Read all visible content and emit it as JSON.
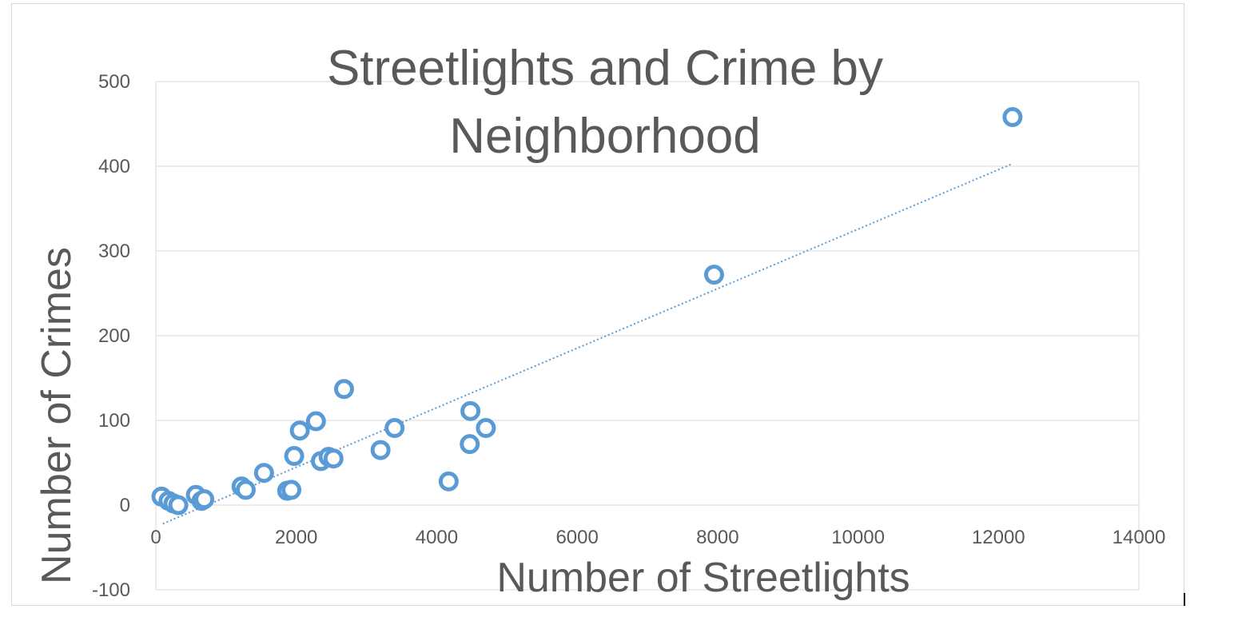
{
  "chart_data": {
    "type": "scatter",
    "title": "Streetlights and Crime by Neighborhood",
    "title_lines": [
      "Streetlights and Crime by",
      "Neighborhood"
    ],
    "xlabel": "Number of Streetlights",
    "ylabel": "Number of Crimes",
    "xlim": [
      0,
      14000
    ],
    "ylim": [
      -100,
      500
    ],
    "x_ticks": [
      0,
      2000,
      4000,
      6000,
      8000,
      10000,
      12000,
      14000
    ],
    "y_ticks": [
      -100,
      0,
      100,
      200,
      300,
      400,
      500
    ],
    "grid": "horizontal",
    "legend": "none",
    "marker_color": "#5B9BD5",
    "trendline": {
      "type": "linear",
      "style": "dotted",
      "x_start": 100,
      "y_start": -22,
      "x_end": 12200,
      "y_end": 403
    },
    "points": [
      {
        "x": 80,
        "y": 10
      },
      {
        "x": 180,
        "y": 5
      },
      {
        "x": 250,
        "y": 2
      },
      {
        "x": 320,
        "y": 0
      },
      {
        "x": 570,
        "y": 12
      },
      {
        "x": 650,
        "y": 5
      },
      {
        "x": 690,
        "y": 7
      },
      {
        "x": 1220,
        "y": 22
      },
      {
        "x": 1280,
        "y": 18
      },
      {
        "x": 1540,
        "y": 38
      },
      {
        "x": 1870,
        "y": 17
      },
      {
        "x": 1930,
        "y": 18
      },
      {
        "x": 1970,
        "y": 58
      },
      {
        "x": 2050,
        "y": 88
      },
      {
        "x": 2280,
        "y": 99
      },
      {
        "x": 2350,
        "y": 52
      },
      {
        "x": 2460,
        "y": 57
      },
      {
        "x": 2530,
        "y": 55
      },
      {
        "x": 2680,
        "y": 137
      },
      {
        "x": 3200,
        "y": 65
      },
      {
        "x": 3400,
        "y": 91
      },
      {
        "x": 4170,
        "y": 28
      },
      {
        "x": 4470,
        "y": 72
      },
      {
        "x": 4480,
        "y": 111
      },
      {
        "x": 4700,
        "y": 91
      },
      {
        "x": 7950,
        "y": 272
      },
      {
        "x": 12200,
        "y": 458
      }
    ]
  }
}
